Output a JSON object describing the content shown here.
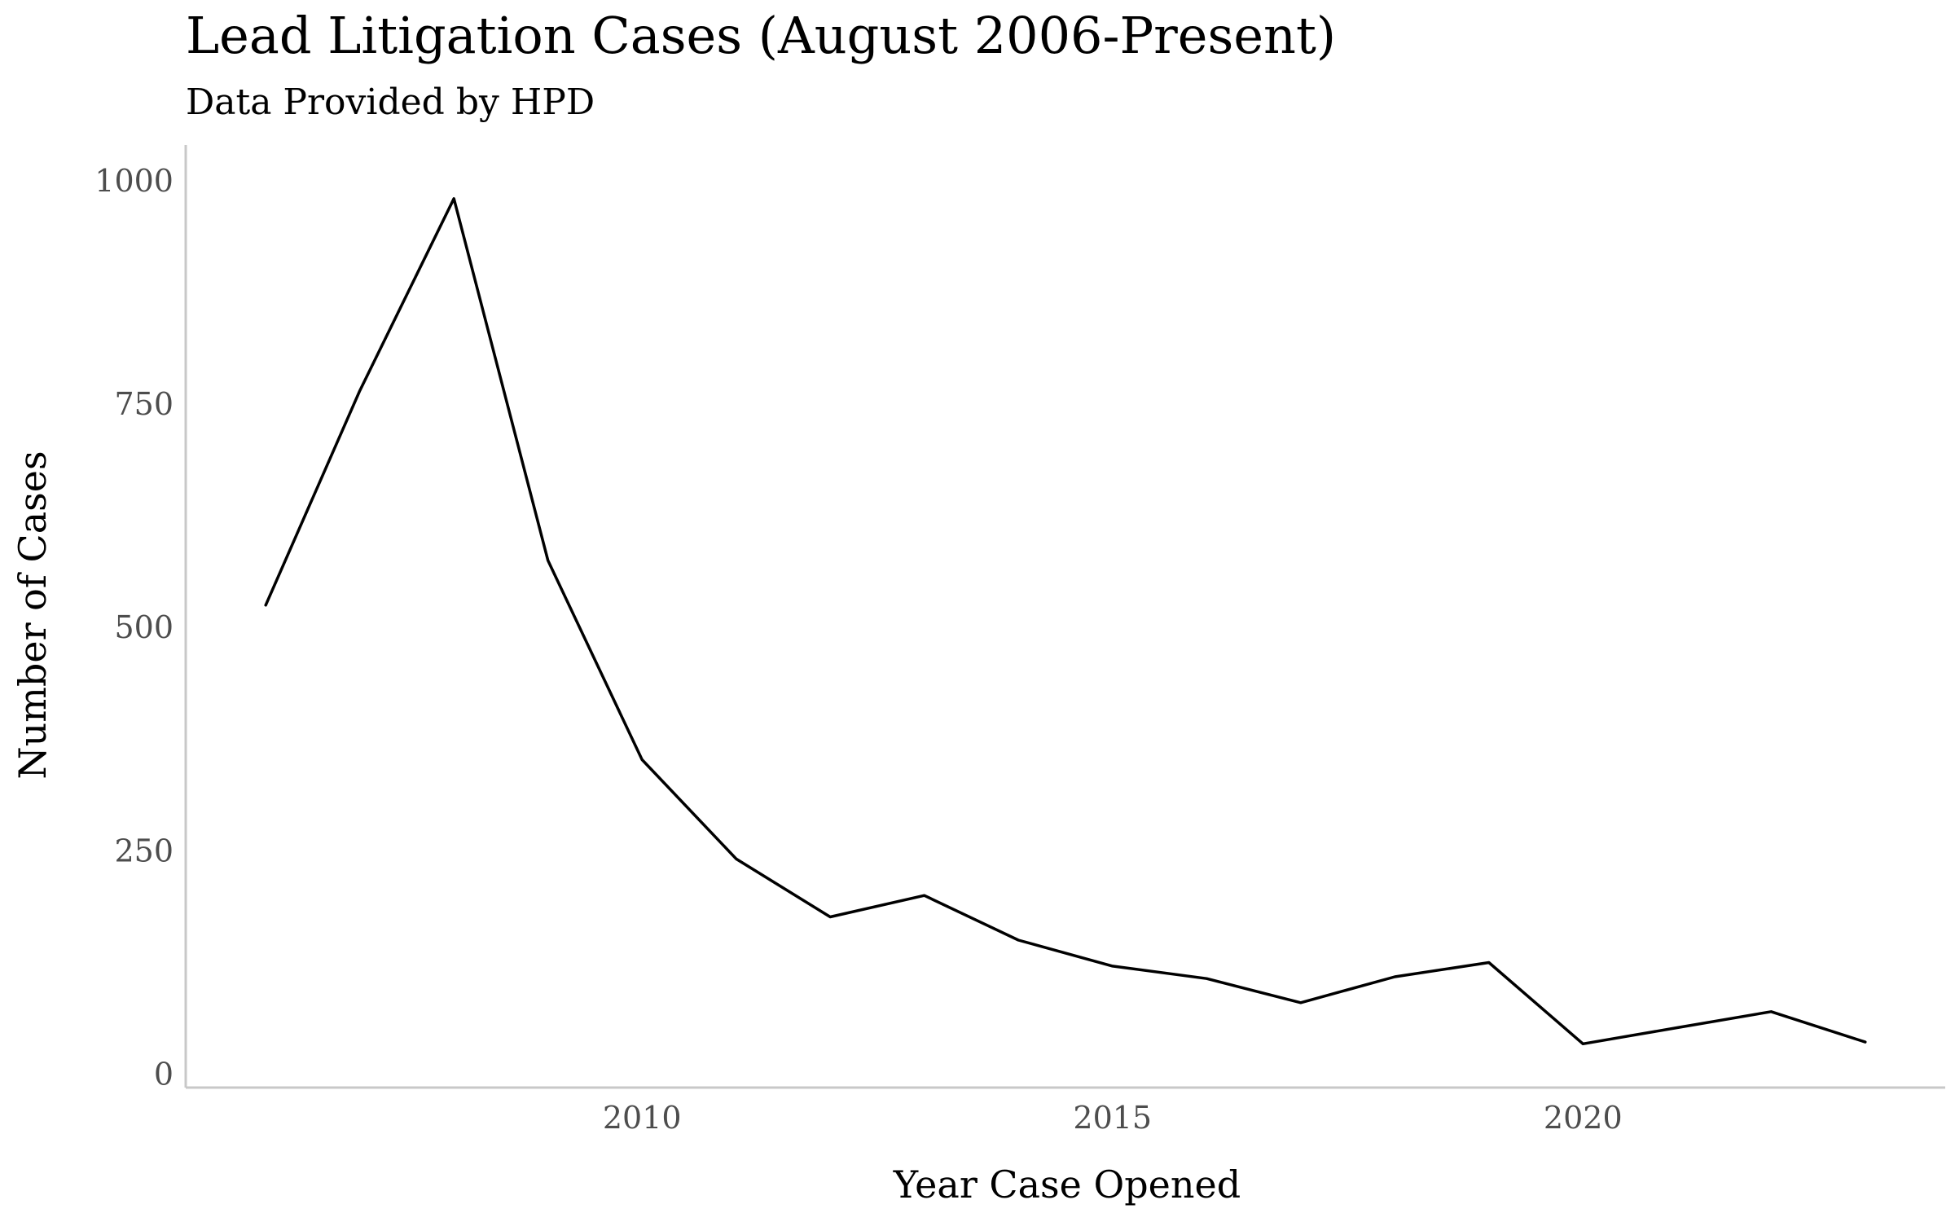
{
  "chart_data": {
    "type": "line",
    "title": "Lead Litigation Cases (August 2006-Present)",
    "subtitle": "Data Provided by HPD",
    "xlabel": "Year Case Opened",
    "ylabel": "Number of Cases",
    "xlim": [
      2005.15,
      2023.85
    ],
    "ylim": [
      -15,
      1040
    ],
    "xticks": [
      2010,
      2015,
      2020
    ],
    "yticks": [
      0,
      250,
      500,
      750,
      1000
    ],
    "grid": false,
    "legend": "none",
    "series": [
      {
        "color": "#000000",
        "x": [
          2006,
          2007,
          2008,
          2009,
          2010,
          2011,
          2012,
          2013,
          2014,
          2015,
          2016,
          2017,
          2018,
          2019,
          2020,
          2021,
          2022,
          2023
        ],
        "y": [
          525,
          765,
          980,
          575,
          352,
          241,
          176,
          200,
          150,
          121,
          107,
          80,
          109,
          125,
          34,
          52,
          70,
          36
        ]
      }
    ]
  }
}
